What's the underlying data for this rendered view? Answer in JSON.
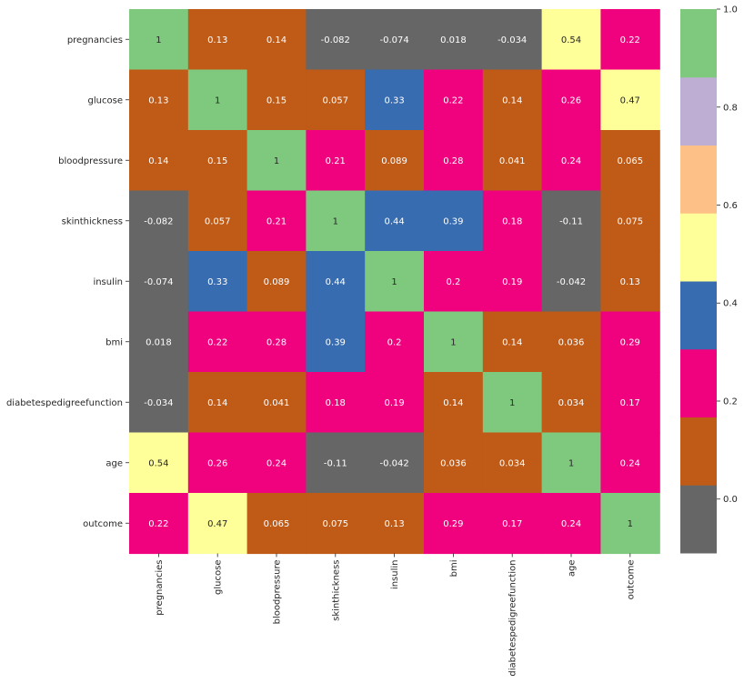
{
  "chart_data": {
    "type": "heatmap",
    "title": "",
    "xlabel": "",
    "ylabel": "",
    "rows": [
      "pregnancies",
      "glucose",
      "bloodpressure",
      "skinthickness",
      "insulin",
      "bmi",
      "diabetespedigreefunction",
      "age",
      "outcome"
    ],
    "columns": [
      "pregnancies",
      "glucose",
      "bloodpressure",
      "skinthickness",
      "insulin",
      "bmi",
      "diabetespedigreefunction",
      "age",
      "outcome"
    ],
    "values": [
      [
        1,
        0.13,
        0.14,
        -0.082,
        -0.074,
        0.018,
        -0.034,
        0.54,
        0.22
      ],
      [
        0.13,
        1,
        0.15,
        0.057,
        0.33,
        0.22,
        0.14,
        0.26,
        0.47
      ],
      [
        0.14,
        0.15,
        1,
        0.21,
        0.089,
        0.28,
        0.041,
        0.24,
        0.065
      ],
      [
        -0.082,
        0.057,
        0.21,
        1,
        0.44,
        0.39,
        0.18,
        -0.11,
        0.075
      ],
      [
        -0.074,
        0.33,
        0.089,
        0.44,
        1,
        0.2,
        0.19,
        -0.042,
        0.13
      ],
      [
        0.018,
        0.22,
        0.28,
        0.39,
        0.2,
        1,
        0.14,
        0.036,
        0.29
      ],
      [
        -0.034,
        0.14,
        0.041,
        0.18,
        0.19,
        0.14,
        1,
        0.034,
        0.17
      ],
      [
        0.54,
        0.26,
        0.24,
        -0.11,
        -0.042,
        0.036,
        0.034,
        1,
        0.24
      ],
      [
        0.22,
        0.47,
        0.065,
        0.075,
        0.13,
        0.29,
        0.17,
        0.24,
        1
      ]
    ],
    "labels": [
      [
        "1",
        "0.13",
        "0.14",
        "-0.082",
        "-0.074",
        "0.018",
        "-0.034",
        "0.54",
        "0.22"
      ],
      [
        "0.13",
        "1",
        "0.15",
        "0.057",
        "0.33",
        "0.22",
        "0.14",
        "0.26",
        "0.47"
      ],
      [
        "0.14",
        "0.15",
        "1",
        "0.21",
        "0.089",
        "0.28",
        "0.041",
        "0.24",
        "0.065"
      ],
      [
        "-0.082",
        "0.057",
        "0.21",
        "1",
        "0.44",
        "0.39",
        "0.18",
        "-0.11",
        "0.075"
      ],
      [
        "-0.074",
        "0.33",
        "0.089",
        "0.44",
        "1",
        "0.2",
        "0.19",
        "-0.042",
        "0.13"
      ],
      [
        "0.018",
        "0.22",
        "0.28",
        "0.39",
        "0.2",
        "1",
        "0.14",
        "0.036",
        "0.29"
      ],
      [
        "-0.034",
        "0.14",
        "0.041",
        "0.18",
        "0.19",
        "0.14",
        "1",
        "0.034",
        "0.17"
      ],
      [
        "0.54",
        "0.26",
        "0.24",
        "-0.11",
        "-0.042",
        "0.036",
        "0.034",
        "1",
        "0.24"
      ],
      [
        "0.22",
        "0.47",
        "0.065",
        "0.075",
        "0.13",
        "0.29",
        "0.17",
        "0.24",
        "1"
      ]
    ],
    "colormap": "Accent_r",
    "color_range": [
      -0.11,
      1.0
    ],
    "colorbar": {
      "ticks": [
        0.0,
        0.2,
        0.4,
        0.6,
        0.8,
        1.0
      ],
      "tick_labels": [
        "0.0",
        "0.2",
        "0.4",
        "0.6",
        "0.8",
        "1.0"
      ],
      "bands": [
        "#666666",
        "#bf5b17",
        "#f0027f",
        "#386cb0",
        "#ffff99",
        "#fdc086",
        "#beaed4",
        "#7fc97f"
      ]
    },
    "text_colors": {
      "light": "#ffffff",
      "dark": "#262626"
    }
  }
}
